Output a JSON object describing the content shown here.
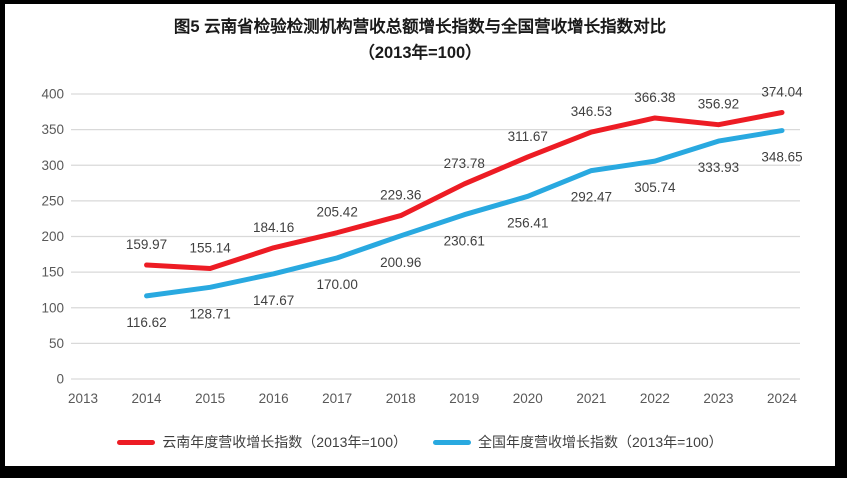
{
  "figure": {
    "title_line1": "图5  云南省检验检测机构营收总额增长指数与全国营收增长指数对比",
    "title_line2": "（2013年=100）"
  },
  "chart_data": {
    "type": "line",
    "title": "图5 云南省检验检测机构营收总额增长指数与全国营收增长指数对比（2013年=100）",
    "categories": [
      "2013",
      "2014",
      "2015",
      "2016",
      "2017",
      "2018",
      "2019",
      "2020",
      "2021",
      "2022",
      "2023",
      "2024"
    ],
    "series": [
      {
        "name": "云南年度营收增长指数（2013年=100）",
        "color": "#ed1c24",
        "label_position": "above",
        "values": [
          null,
          159.97,
          155.14,
          184.16,
          205.42,
          229.36,
          273.78,
          311.67,
          346.53,
          366.38,
          356.92,
          374.04
        ]
      },
      {
        "name": "全国年度营收增长指数（2013年=100）",
        "color": "#29a9e0",
        "label_position": "below",
        "values": [
          null,
          116.62,
          128.71,
          147.67,
          170.0,
          200.96,
          230.61,
          256.41,
          292.47,
          305.74,
          333.93,
          348.65
        ]
      }
    ],
    "ylim": [
      0,
      400
    ],
    "ytick_step": 50,
    "grid": true,
    "legend_position": "bottom",
    "value_label_decimals": 2
  },
  "style_colors": {
    "gridline": "#d9d9d9",
    "axis_label": "#595959",
    "data_label": "#404040",
    "frame": "#000000",
    "plot_background": "#ffffff"
  }
}
